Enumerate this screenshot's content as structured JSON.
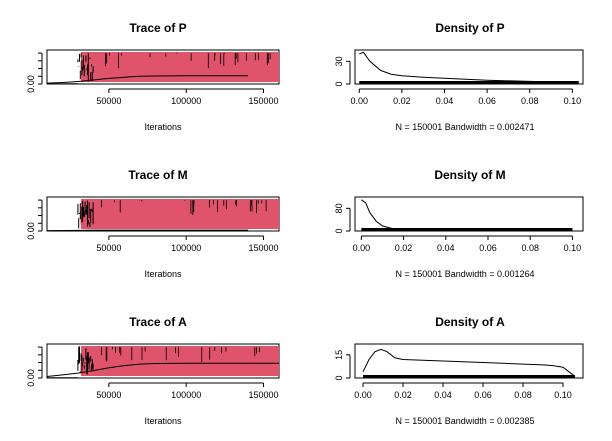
{
  "chart_data": [
    {
      "type": "line",
      "title": "Trace of P",
      "xlabel": "Iterations",
      "ylabel": "",
      "x_ticks": [
        "50000",
        "100000",
        "150000"
      ],
      "y_ticks": [
        "0.00"
      ],
      "xlim": [
        10000,
        160000
      ],
      "ylim": [
        0,
        0.11
      ],
      "series": [
        {
          "color": "#000000",
          "burn_in_x": [
            10000,
            25000,
            30000,
            35000,
            40000
          ],
          "running_mean_x": [
            10000,
            20000,
            30000,
            40000,
            50000,
            60000,
            70000,
            80000,
            100000,
            120000,
            140000
          ],
          "running_mean_y": [
            0.003,
            0.005,
            0.008,
            0.013,
            0.018,
            0.022,
            0.025,
            0.026,
            0.027,
            0.027,
            0.027
          ]
        },
        {
          "color": "#DF536B",
          "x_range": [
            10000,
            160000
          ],
          "y_range": [
            0.0,
            0.1
          ]
        }
      ]
    },
    {
      "type": "line",
      "title": "Density of P",
      "xlabel": "N = 150001   Bandwidth = 0.002471",
      "ylabel": "",
      "x_ticks": [
        "0.00",
        "0.02",
        "0.04",
        "0.06",
        "0.08",
        "0.10"
      ],
      "y_ticks": [
        "0",
        "30"
      ],
      "xlim": [
        -0.002,
        0.105
      ],
      "ylim": [
        0,
        45
      ],
      "x": [
        0.0,
        0.002,
        0.005,
        0.01,
        0.015,
        0.02,
        0.03,
        0.04,
        0.06,
        0.08,
        0.1,
        0.103
      ],
      "y": [
        40,
        42,
        30,
        18,
        13,
        11,
        9,
        7.5,
        5,
        3.5,
        2,
        0.5
      ]
    },
    {
      "type": "line",
      "title": "Trace of M",
      "xlabel": "Iterations",
      "ylabel": "",
      "x_ticks": [
        "50000",
        "100000",
        "150000"
      ],
      "y_ticks": [
        "0.00"
      ],
      "xlim": [
        10000,
        160000
      ],
      "ylim": [
        0,
        0.11
      ],
      "series": [
        {
          "color": "#000000",
          "burn_in_x": [
            10000,
            25000,
            30000,
            35000,
            40000
          ],
          "running_mean_x": [
            10000,
            30000,
            40000,
            60000,
            100000,
            140000
          ],
          "running_mean_y": [
            0.001,
            0.002,
            0.003,
            0.003,
            0.003,
            0.003
          ]
        },
        {
          "color": "#DF536B",
          "x_range": [
            10000,
            160000
          ],
          "y_range": [
            0.0,
            0.1
          ]
        }
      ]
    },
    {
      "type": "line",
      "title": "Density of M",
      "xlabel": "N = 150001   Bandwidth = 0.001264",
      "ylabel": "",
      "x_ticks": [
        "0.00",
        "0.02",
        "0.04",
        "0.06",
        "0.08",
        "0.10"
      ],
      "y_ticks": [
        "0",
        "80"
      ],
      "xlim": [
        -0.003,
        0.105
      ],
      "ylim": [
        0,
        120
      ],
      "x": [
        0.0,
        0.002,
        0.004,
        0.007,
        0.01,
        0.015,
        0.02,
        0.03,
        0.05,
        0.08,
        0.1
      ],
      "y": [
        110,
        100,
        65,
        35,
        18,
        8,
        4,
        1.5,
        0.5,
        0.2,
        0.1
      ]
    },
    {
      "type": "line",
      "title": "Trace of A",
      "xlabel": "Iterations",
      "ylabel": "",
      "x_ticks": [
        "50000",
        "100000",
        "150000"
      ],
      "y_ticks": [
        "0.00"
      ],
      "xlim": [
        10000,
        160000
      ],
      "ylim": [
        0,
        0.11
      ],
      "series": [
        {
          "color": "#000000",
          "burn_in_x": [
            10000,
            25000,
            30000,
            35000,
            40000
          ],
          "running_mean_x": [
            10000,
            20000,
            30000,
            40000,
            50000,
            60000,
            70000,
            80000,
            100000,
            120000,
            140000,
            160000
          ],
          "running_mean_y": [
            0.005,
            0.01,
            0.016,
            0.024,
            0.033,
            0.04,
            0.045,
            0.047,
            0.048,
            0.048,
            0.048,
            0.048
          ]
        },
        {
          "color": "#DF536B",
          "x_range": [
            10000,
            160000
          ],
          "y_range": [
            0.0,
            0.1
          ]
        }
      ]
    },
    {
      "type": "line",
      "title": "Density of A",
      "xlabel": "N = 150001   Bandwidth = 0.002385",
      "ylabel": "",
      "x_ticks": [
        "0.00",
        "0.02",
        "0.04",
        "0.06",
        "0.08",
        "0.10"
      ],
      "y_ticks": [
        "0",
        "15"
      ],
      "xlim": [
        -0.004,
        0.11
      ],
      "ylim": [
        0,
        22
      ],
      "x": [
        0.0,
        0.003,
        0.006,
        0.009,
        0.012,
        0.016,
        0.02,
        0.03,
        0.04,
        0.05,
        0.06,
        0.07,
        0.08,
        0.09,
        0.095,
        0.1,
        0.103,
        0.106
      ],
      "y": [
        4,
        12,
        17,
        18.5,
        17,
        13,
        12,
        11.5,
        11,
        10.5,
        10,
        9.5,
        9,
        8.5,
        8,
        7,
        4,
        1
      ]
    }
  ]
}
